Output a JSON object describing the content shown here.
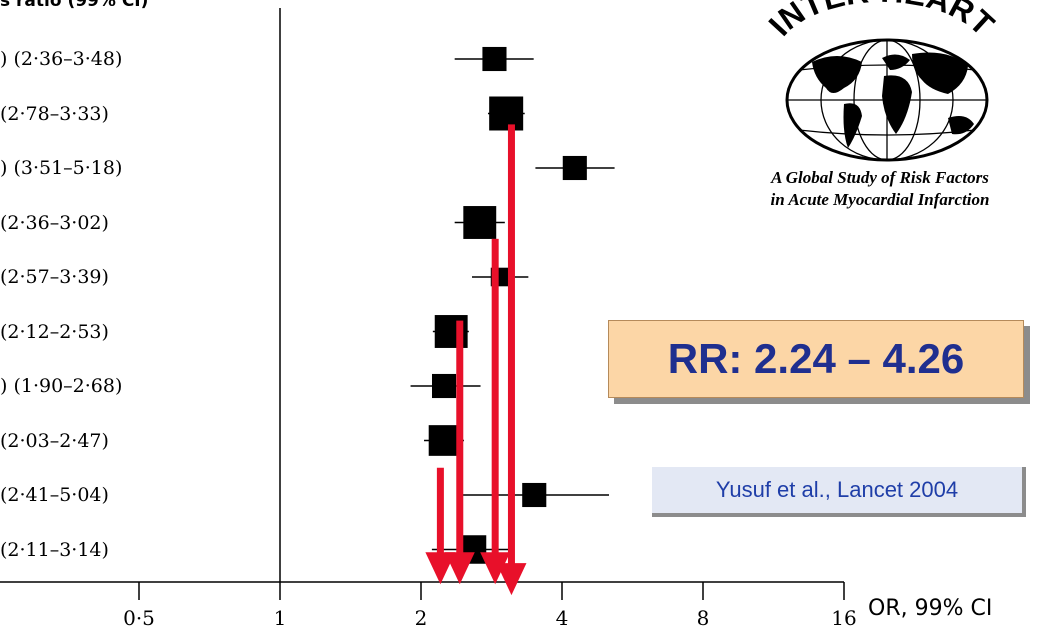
{
  "header": {
    "partial_title": "s ratio (99% CI)"
  },
  "chart_data": {
    "type": "scatter",
    "subtype": "forest-plot",
    "x_scale": "log2",
    "xlim": [
      0.35,
      16
    ],
    "x_ticks": [
      {
        "value": 0.5,
        "label": "0·5"
      },
      {
        "value": 1,
        "label": "1"
      },
      {
        "value": 2,
        "label": "2"
      },
      {
        "value": 4,
        "label": "4"
      },
      {
        "value": 8,
        "label": "8"
      },
      {
        "value": 16,
        "label": "16"
      }
    ],
    "reference_line": 1,
    "xlabel": "OR, 99% CI",
    "rows": [
      {
        "label": ") (2·36–3·48)",
        "or": 2.87,
        "lo": 2.36,
        "hi": 3.48,
        "weight": 0.55
      },
      {
        "label": "(2·78–3·33)",
        "or": 3.04,
        "lo": 2.78,
        "hi": 3.33,
        "weight": 1.0
      },
      {
        "label": ") (3·51–5·18)",
        "or": 4.26,
        "lo": 3.51,
        "hi": 5.18,
        "weight": 0.55
      },
      {
        "label": "(2·36–3·02)",
        "or": 2.67,
        "lo": 2.36,
        "hi": 3.02,
        "weight": 0.95
      },
      {
        "label": "(2·57–3·39)",
        "or": 2.95,
        "lo": 2.57,
        "hi": 3.39,
        "weight": 0.3
      },
      {
        "label": "(2·12–2·53)",
        "or": 2.32,
        "lo": 2.12,
        "hi": 2.53,
        "weight": 0.95
      },
      {
        "label": ") (1·90–2·68)",
        "or": 2.24,
        "lo": 1.9,
        "hi": 2.68,
        "weight": 0.55
      },
      {
        "label": "(2·03–2·47)",
        "or": 2.24,
        "lo": 2.03,
        "hi": 2.47,
        "weight": 0.85
      },
      {
        "label": "(2·41–5·04)",
        "or": 3.49,
        "lo": 2.41,
        "hi": 5.04,
        "weight": 0.55
      },
      {
        "label": "(2·11–3·14)",
        "or": 2.57,
        "lo": 2.11,
        "hi": 3.14,
        "weight": 0.75
      }
    ],
    "annotation_arrows": [
      {
        "x": 2.2,
        "y_start_row": 7.5,
        "y_end_row": 9.6
      },
      {
        "x": 2.42,
        "y_start_row": 4.8,
        "y_end_row": 9.6
      },
      {
        "x": 2.88,
        "y_start_row": 3.3,
        "y_end_row": 9.6
      },
      {
        "x": 3.12,
        "y_start_row": 1.2,
        "y_end_row": 9.8
      }
    ],
    "annotation_arrow_color": "#e8102a"
  },
  "logo": {
    "wordmark": "INTER-HEART",
    "caption_line1": "A Global Study of Risk Factors",
    "caption_line2": "in Acute Myocardial Infarction"
  },
  "callout": {
    "rr_text": "RR: 2.24 – 4.26"
  },
  "citation": {
    "text": "Yusuf  et al., Lancet 2004"
  }
}
